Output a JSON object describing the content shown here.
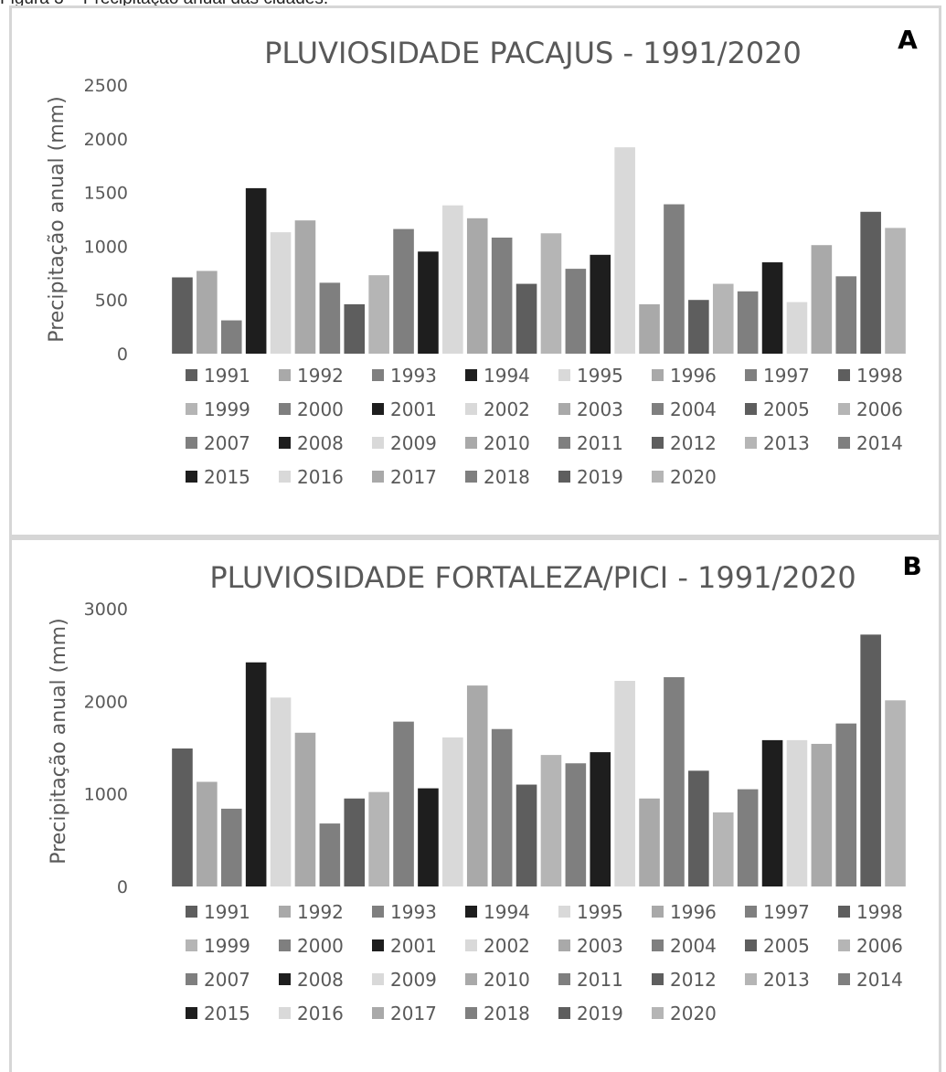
{
  "figure_caption": "Figura 3 – Precipitação anual das cidades.",
  "colors": {
    "dark": "#5e5e5e",
    "black": "#1e1e1e",
    "light": "#d9d9d9",
    "mid_light": "#a9a9a9",
    "mid": "#7f7f7f",
    "light_mid": "#b5b5b5",
    "axis_text": "#595959",
    "panel_border": "#d6d6d6"
  },
  "chart_data": [
    {
      "type": "bar",
      "panel_label": "A",
      "title": "PLUVIOSIDADE PACAJUS - 1991/2020",
      "xlabel": "",
      "ylabel": "Precipitação  anual (mm)",
      "ylim": [
        0,
        2500
      ],
      "yticks": [
        "0",
        "500",
        "1000",
        "1500",
        "2000",
        "2500"
      ],
      "ytick_values": [
        0,
        500,
        1000,
        1500,
        2000,
        2500
      ],
      "grid": false,
      "legend_position": "bottom",
      "categories": [
        "1991",
        "1992",
        "1993",
        "1994",
        "1995",
        "1996",
        "1997",
        "1998",
        "1999",
        "2000",
        "2001",
        "2002",
        "2003",
        "2004",
        "2005",
        "2006",
        "2007",
        "2008",
        "2009",
        "2010",
        "2011",
        "2012",
        "2013",
        "2014",
        "2015",
        "2016",
        "2017",
        "2018",
        "2019",
        "2020"
      ],
      "values": [
        710,
        770,
        310,
        1540,
        1130,
        1240,
        660,
        460,
        730,
        1160,
        950,
        1380,
        1260,
        1080,
        650,
        1120,
        790,
        920,
        1920,
        460,
        1390,
        500,
        650,
        580,
        850,
        480,
        1010,
        720,
        1320,
        1170
      ],
      "bar_colors": [
        "#5e5e5e",
        "#a9a9a9",
        "#7f7f7f",
        "#1e1e1e",
        "#d9d9d9",
        "#a9a9a9",
        "#7f7f7f",
        "#5e5e5e",
        "#b5b5b5",
        "#7f7f7f",
        "#1e1e1e",
        "#d9d9d9",
        "#a9a9a9",
        "#7f7f7f",
        "#5e5e5e",
        "#b5b5b5",
        "#7f7f7f",
        "#1e1e1e",
        "#d9d9d9",
        "#a9a9a9",
        "#7f7f7f",
        "#5e5e5e",
        "#b5b5b5",
        "#7f7f7f",
        "#1e1e1e",
        "#d9d9d9",
        "#a9a9a9",
        "#7f7f7f",
        "#5e5e5e",
        "#b5b5b5"
      ]
    },
    {
      "type": "bar",
      "panel_label": "B",
      "title": "PLUVIOSIDADE FORTALEZA/PICI - 1991/2020",
      "xlabel": "",
      "ylabel": "Precipitação  anual (mm)",
      "ylim": [
        0,
        3000
      ],
      "yticks": [
        "0",
        "1000",
        "2000",
        "3000"
      ],
      "ytick_values": [
        0,
        1000,
        2000,
        3000
      ],
      "grid": false,
      "legend_position": "bottom",
      "categories": [
        "1991",
        "1992",
        "1993",
        "1994",
        "1995",
        "1996",
        "1997",
        "1998",
        "1999",
        "2000",
        "2001",
        "2002",
        "2003",
        "2004",
        "2005",
        "2006",
        "2007",
        "2008",
        "2009",
        "2010",
        "2011",
        "2012",
        "2013",
        "2014",
        "2015",
        "2016",
        "2017",
        "2018",
        "2019",
        "2020"
      ],
      "values": [
        1490,
        1130,
        840,
        2420,
        2040,
        1660,
        680,
        950,
        1020,
        1780,
        1060,
        1610,
        2170,
        1700,
        1100,
        1420,
        1330,
        1450,
        2220,
        950,
        2260,
        1250,
        800,
        1050,
        1580,
        1580,
        1540,
        1760,
        2720,
        2010
      ],
      "bar_colors": [
        "#5e5e5e",
        "#a9a9a9",
        "#7f7f7f",
        "#1e1e1e",
        "#d9d9d9",
        "#a9a9a9",
        "#7f7f7f",
        "#5e5e5e",
        "#b5b5b5",
        "#7f7f7f",
        "#1e1e1e",
        "#d9d9d9",
        "#a9a9a9",
        "#7f7f7f",
        "#5e5e5e",
        "#b5b5b5",
        "#7f7f7f",
        "#1e1e1e",
        "#d9d9d9",
        "#a9a9a9",
        "#7f7f7f",
        "#5e5e5e",
        "#b5b5b5",
        "#7f7f7f",
        "#1e1e1e",
        "#d9d9d9",
        "#a9a9a9",
        "#7f7f7f",
        "#5e5e5e",
        "#b5b5b5"
      ]
    }
  ]
}
